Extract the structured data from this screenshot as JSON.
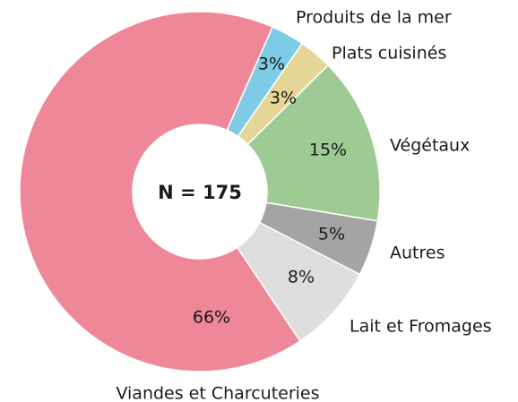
{
  "chart_data": {
    "type": "donut",
    "center_label": "N = 175",
    "categories": [
      "Produits de la mer",
      "Plats cuisinés",
      "Végétaux",
      "Autres",
      "Lait et Fromages",
      "Viandes et Charcuteries"
    ],
    "values": [
      3,
      3,
      15,
      5,
      8,
      66
    ],
    "value_labels": [
      "3%",
      "3%",
      "15%",
      "5%",
      "8%",
      "66%"
    ],
    "colors": [
      "#7ecbe6",
      "#e5d597",
      "#9dcb93",
      "#a4a4a4",
      "#dedede",
      "#ee8797"
    ]
  }
}
